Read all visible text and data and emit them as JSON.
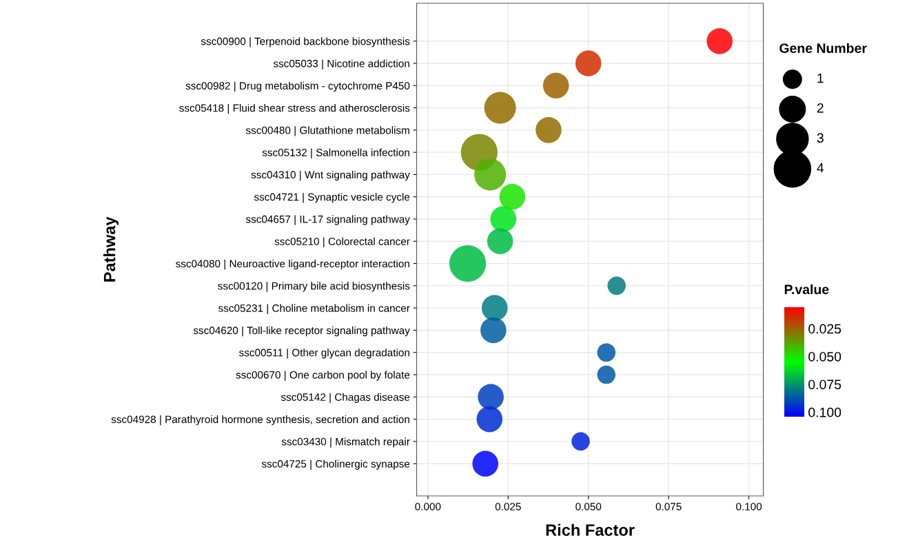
{
  "chart_data": {
    "type": "bubble",
    "xlabel": "Rich Factor",
    "ylabel": "Pathway",
    "legend_title": "Gene Number",
    "clabel": "P.value",
    "categories": [
      "ssc00900 | Terpenoid backbone biosynthesis",
      "ssc05033 | Nicotine addiction",
      "ssc00982 | Drug metabolism - cytochrome P450",
      "ssc05418 | Fluid shear stress and atherosclerosis",
      "ssc00480 | Glutathione metabolism",
      "ssc05132 | Salmonella infection",
      "ssc04310 | Wnt signaling pathway",
      "ssc04721 | Synaptic vesicle cycle",
      "ssc04657 | IL-17 signaling pathway",
      "ssc05210 | Colorectal cancer",
      "ssc04080 | Neuroactive ligand-receptor interaction",
      "ssc00120 | Primary bile acid biosynthesis",
      "ssc05231 | Choline metabolism in cancer",
      "ssc04620 | Toll-like receptor signaling pathway",
      "ssc00511 | Other glycan degradation",
      "ssc00670 | One carbon pool by folate",
      "ssc05142 | Chagas disease",
      "ssc04928 | Parathyroid hormone synthesis, secretion and action",
      "ssc03430 | Mismatch repair",
      "ssc04725 | Cholinergic synapse"
    ],
    "series": [
      {
        "values": [
          0.0909,
          0.05,
          0.0399,
          0.0225,
          0.0376,
          0.016,
          0.0194,
          0.0263,
          0.0235,
          0.0225,
          0.0124,
          0.0588,
          0.0208,
          0.0204,
          0.0556,
          0.0556,
          0.0196,
          0.0192,
          0.0476,
          0.0179
        ],
        "sizes": [
          2,
          2,
          2,
          3,
          2,
          4,
          3,
          2,
          2,
          2,
          4,
          1,
          2,
          2,
          1,
          1,
          2,
          2,
          1,
          2
        ],
        "cvalues": [
          0.006,
          0.015,
          0.025,
          0.027,
          0.027,
          0.032,
          0.04,
          0.05,
          0.06,
          0.068,
          0.068,
          0.08,
          0.08,
          0.086,
          0.087,
          0.087,
          0.092,
          0.095,
          0.097,
          0.103
        ]
      }
    ],
    "size_legend": [
      {
        "value": 1,
        "label": "1"
      },
      {
        "value": 2,
        "label": "2"
      },
      {
        "value": 3,
        "label": "3"
      },
      {
        "value": 4,
        "label": "4"
      }
    ],
    "clim": [
      0.104,
      0.006
    ],
    "cticks": [
      {
        "value": 0.025,
        "label": "0.025"
      },
      {
        "value": 0.05,
        "label": "0.050"
      },
      {
        "value": 0.075,
        "label": "0.075"
      },
      {
        "value": 0.1,
        "label": "0.100"
      }
    ],
    "orientation": "horizontal",
    "xlim": [
      -0.0035,
      0.1045
    ],
    "xticks": [
      {
        "value": 0,
        "label": "0.000"
      },
      {
        "value": 0.025,
        "label": "0.025"
      },
      {
        "value": 0.05,
        "label": "0.050"
      },
      {
        "value": 0.075,
        "label": "0.075"
      },
      {
        "value": 0.1,
        "label": "0.100"
      }
    ],
    "grid": true
  }
}
